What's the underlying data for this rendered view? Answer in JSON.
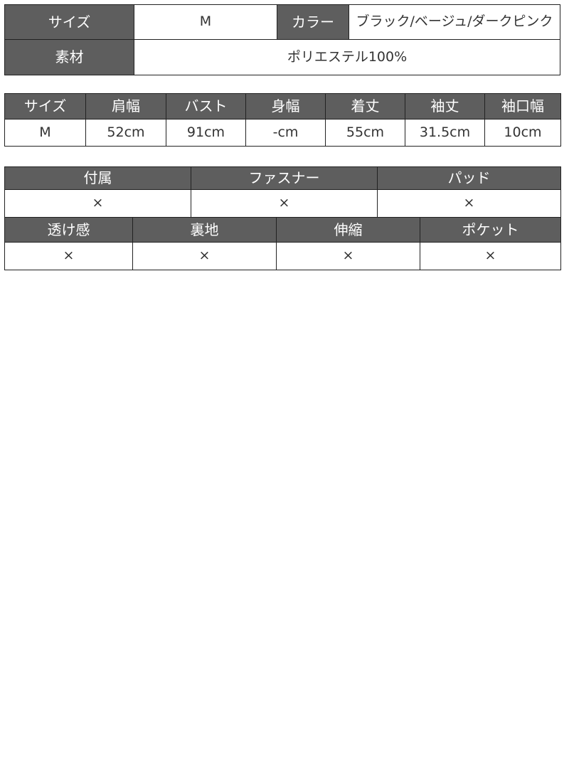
{
  "spec": {
    "size_label": "サイズ",
    "size_value": "M",
    "color_label": "カラー",
    "color_value": "ブラック/ベージュ/ダークピンク",
    "material_label": "素材",
    "material_value": "ポリエステル100%"
  },
  "measurements": {
    "headers": [
      "サイズ",
      "肩幅",
      "バスト",
      "身幅",
      "着丈",
      "袖丈",
      "袖口幅"
    ],
    "row": [
      "M",
      "52cm",
      "91cm",
      "-cm",
      "55cm",
      "31.5cm",
      "10cm"
    ]
  },
  "features1": {
    "headers": [
      "付属",
      "ファスナー",
      "パッド"
    ],
    "row": [
      "×",
      "×",
      "×"
    ]
  },
  "features2": {
    "headers": [
      "透け感",
      "裏地",
      "伸縮",
      "ポケット"
    ],
    "row": [
      "×",
      "×",
      "×",
      "×"
    ]
  },
  "colors": {
    "header_bg": "#5e5e5e",
    "border": "#222222"
  }
}
